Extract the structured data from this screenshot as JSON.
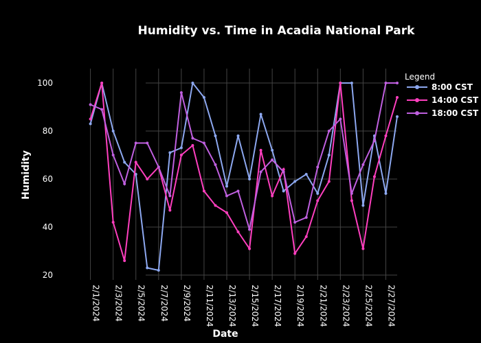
{
  "chart_data": {
    "type": "line",
    "title": "Humidity vs. Time in Acadia National Park",
    "xlabel": "Date",
    "ylabel": "Humidity",
    "legend_title": "Legend",
    "legend_position": "top-right",
    "grid": true,
    "xlim": [
      "2024-01-29",
      "2024-02-28"
    ],
    "ylim": [
      18,
      106
    ],
    "x_ticks": [
      "2/1/2024",
      "2/3/2024",
      "2/5/2024",
      "2/7/2024",
      "2/9/2024",
      "2/11/2024",
      "2/13/2024",
      "2/15/2024",
      "2/17/2024",
      "2/19/2024",
      "2/21/2024",
      "2/23/2024",
      "2/25/2024",
      "2/27/2024"
    ],
    "y_ticks": [
      20,
      40,
      60,
      80,
      100
    ],
    "x": [
      "2024-02-01",
      "2024-02-02",
      "2024-02-03",
      "2024-02-04",
      "2024-02-05",
      "2024-02-06",
      "2024-02-07",
      "2024-02-08",
      "2024-02-09",
      "2024-02-10",
      "2024-02-11",
      "2024-02-12",
      "2024-02-13",
      "2024-02-14",
      "2024-02-15",
      "2024-02-16",
      "2024-02-17",
      "2024-02-18",
      "2024-02-19",
      "2024-02-20",
      "2024-02-21",
      "2024-02-22",
      "2024-02-23",
      "2024-02-24",
      "2024-02-25",
      "2024-02-26",
      "2024-02-27",
      "2024-02-28"
    ],
    "series": [
      {
        "name": "8:00 CST",
        "color": "#8da8f0",
        "values": [
          83,
          100,
          80,
          67,
          62,
          23,
          22,
          71,
          73,
          100,
          94,
          78,
          57,
          78,
          60,
          87,
          72,
          55,
          59,
          62,
          54,
          70,
          100,
          100,
          49,
          78,
          54,
          86
        ]
      },
      {
        "name": "14:00 CST",
        "color": "#ff3fbf",
        "values": [
          85,
          100,
          42,
          26,
          67,
          60,
          65,
          47,
          70,
          74,
          55,
          49,
          46,
          38,
          31,
          72,
          53,
          64,
          29,
          36,
          51,
          59,
          100,
          51,
          31,
          61,
          78,
          94
        ]
      },
      {
        "name": "18:00 CST",
        "color": "#c060e0",
        "values": [
          91,
          89,
          70,
          58,
          75,
          75,
          65,
          53,
          96,
          77,
          75,
          66,
          53,
          55,
          39,
          63,
          68,
          63,
          42,
          44,
          65,
          80,
          85,
          54,
          66,
          76,
          100,
          100
        ]
      }
    ]
  }
}
